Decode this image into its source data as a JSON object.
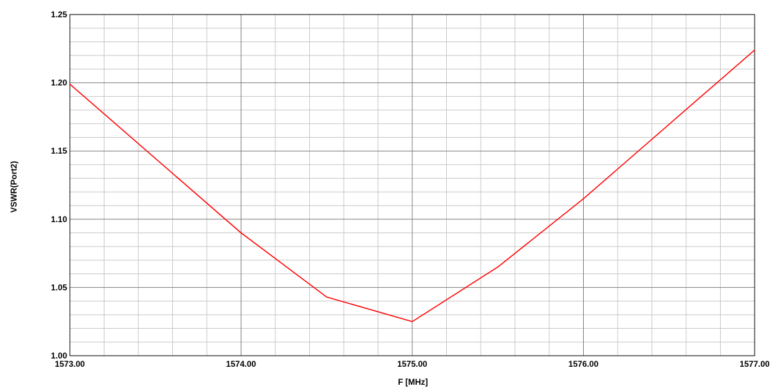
{
  "chart_data": {
    "type": "line",
    "title": "",
    "xlabel": "F [MHz]",
    "ylabel": "VSWR(Port2)",
    "xlim": [
      1573.0,
      1577.0
    ],
    "ylim": [
      1.0,
      1.25
    ],
    "x_ticks": [
      "1573.00",
      "1574.00",
      "1575.00",
      "1576.00",
      "1577.00"
    ],
    "y_ticks": [
      "1.00",
      "1.05",
      "1.10",
      "1.15",
      "1.20",
      "1.25"
    ],
    "x_tick_values": [
      1573,
      1574,
      1575,
      1576,
      1577
    ],
    "y_tick_values": [
      1.0,
      1.05,
      1.1,
      1.15,
      1.2,
      1.25
    ],
    "grid": true,
    "series": [
      {
        "color": "#ff0000",
        "x": [
          1573.0,
          1574.0,
          1574.5,
          1575.0,
          1575.5,
          1576.0,
          1577.0
        ],
        "y": [
          1.199,
          1.09,
          1.043,
          1.025,
          1.065,
          1.115,
          1.224
        ]
      }
    ]
  }
}
